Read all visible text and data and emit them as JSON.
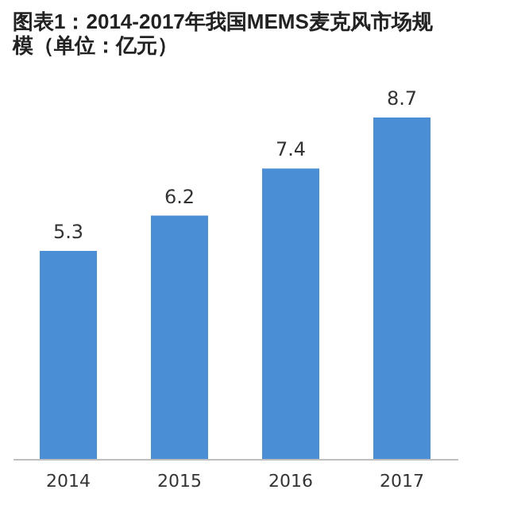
{
  "chart_data": {
    "type": "bar",
    "title": "图表1：2014-2017年我国MEMS麦克风市场规模（单位：亿元）",
    "categories": [
      "2014",
      "2015",
      "2016",
      "2017"
    ],
    "values": [
      5.3,
      6.2,
      7.4,
      8.7
    ],
    "color": "#4a8fd6",
    "data_labels": true,
    "grid": false
  }
}
